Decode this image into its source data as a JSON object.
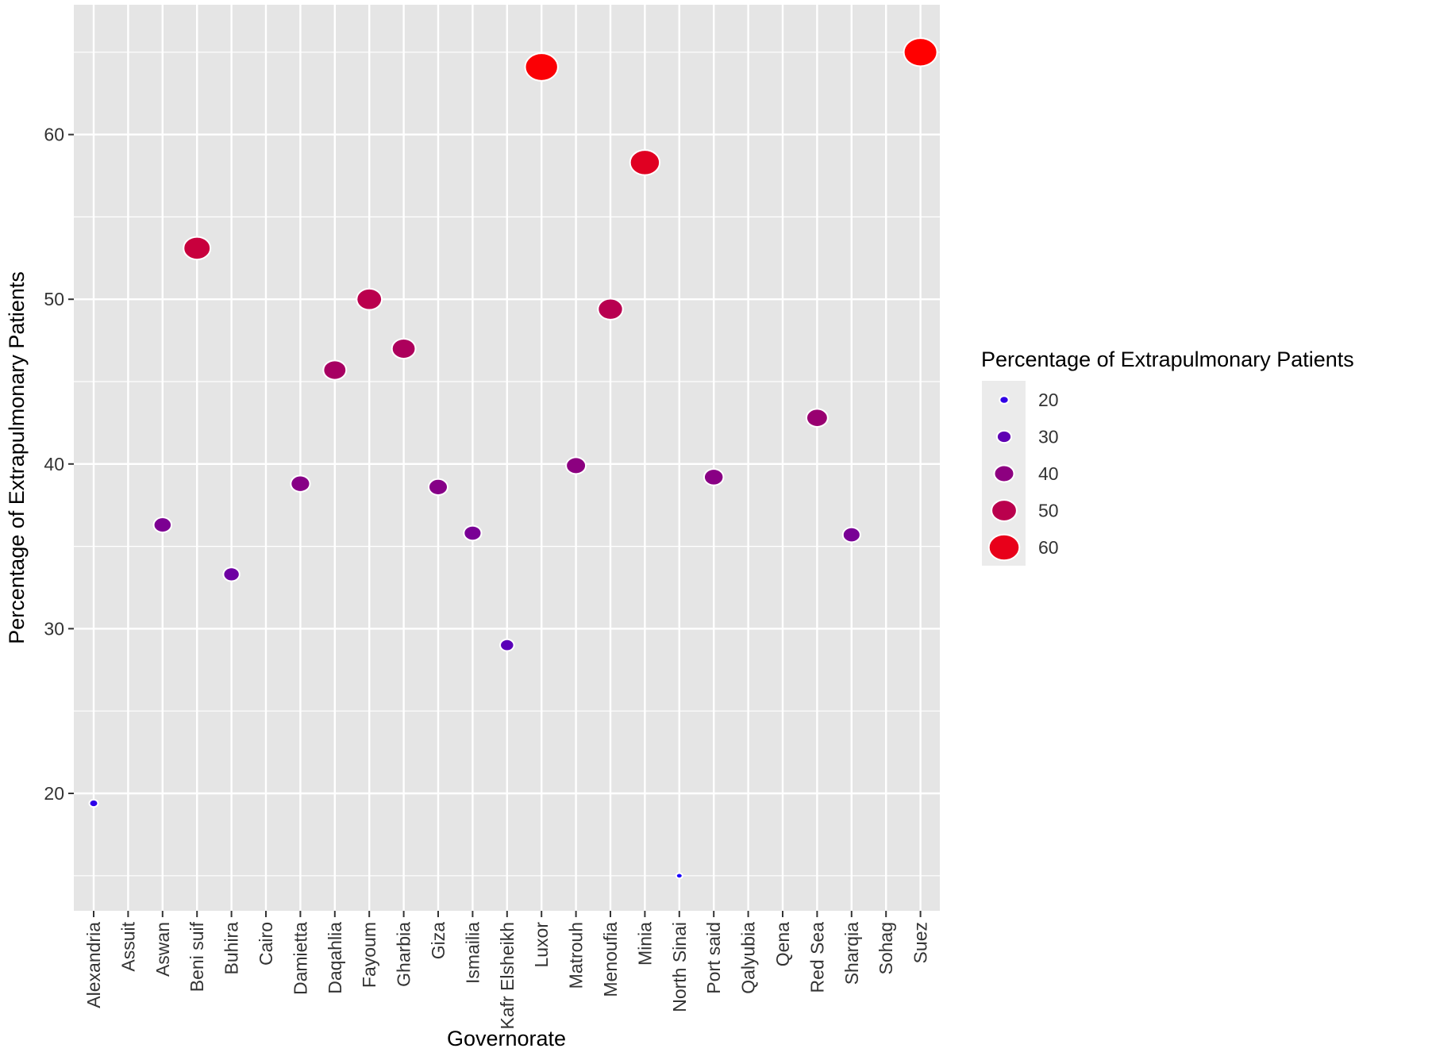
{
  "chart_data": {
    "type": "scatter",
    "title": "",
    "xlabel": "Governorate",
    "ylabel": "Percentage of Extrapulmonary Patients",
    "categories": [
      "Alexandria",
      "Assuit",
      "Aswan",
      "Beni suif",
      "Buhira",
      "Cairo",
      "Damietta",
      "Daqahlia",
      "Fayoum",
      "Gharbia",
      "Giza",
      "Ismailia",
      "Kafr Elsheikh",
      "Luxor",
      "Matrouh",
      "Menoufia",
      "Minia",
      "North  Sinai",
      "Port said",
      "Qalyubia",
      "Qena",
      "Red Sea",
      "Sharqia",
      "Sohag",
      "Suez"
    ],
    "points": [
      {
        "category": "Alexandria",
        "value": 19.4
      },
      {
        "category": "Aswan",
        "value": 36.3
      },
      {
        "category": "Beni suif",
        "value": 53.1
      },
      {
        "category": "Buhira",
        "value": 33.3
      },
      {
        "category": "Damietta",
        "value": 38.8
      },
      {
        "category": "Daqahlia",
        "value": 45.7
      },
      {
        "category": "Fayoum",
        "value": 50.0
      },
      {
        "category": "Gharbia",
        "value": 47.0
      },
      {
        "category": "Giza",
        "value": 38.6
      },
      {
        "category": "Ismailia",
        "value": 35.8
      },
      {
        "category": "Kafr Elsheikh",
        "value": 29.0
      },
      {
        "category": "Luxor",
        "value": 64.1
      },
      {
        "category": "Matrouh",
        "value": 39.9
      },
      {
        "category": "Menoufia",
        "value": 49.4
      },
      {
        "category": "Minia",
        "value": 58.3
      },
      {
        "category": "North  Sinai",
        "value": 15.0
      },
      {
        "category": "Port said",
        "value": 39.2
      },
      {
        "category": "Red Sea",
        "value": 42.8
      },
      {
        "category": "Sharqia",
        "value": 35.7
      },
      {
        "category": "Suez",
        "value": 65.0
      }
    ],
    "ylim": [
      12.5,
      67.5
    ],
    "y_ticks": [
      20,
      30,
      40,
      50,
      60
    ],
    "grid": true,
    "color_scale": {
      "low": "#1a00ff",
      "high": "#ff0000",
      "min": 15,
      "max": 65
    },
    "legend": {
      "title": "Percentage of Extrapulmonary Patients",
      "position": "right",
      "entries": [
        {
          "label": "20",
          "value": 20
        },
        {
          "label": "30",
          "value": 30
        },
        {
          "label": "40",
          "value": 40
        },
        {
          "label": "50",
          "value": 50
        },
        {
          "label": "60",
          "value": 60
        }
      ]
    },
    "panel_background": "#e5e5e5",
    "grid_color": "#ffffff"
  }
}
